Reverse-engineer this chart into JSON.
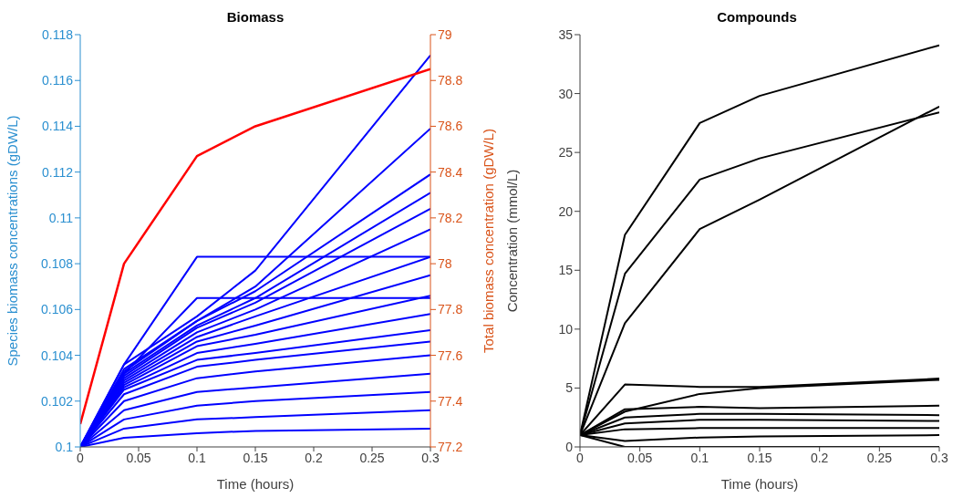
{
  "chart_data": [
    {
      "type": "line",
      "title": "Biomass",
      "xlabel": "Time (hours)",
      "ylabel": "Species biomass concentrations (gDW/L)",
      "y2label": "Total biomass concentration (gDW/L)",
      "x": [
        0,
        0.0375,
        0.1,
        0.15,
        0.3
      ],
      "xlim": [
        0,
        0.3
      ],
      "xticks": [
        0,
        0.05,
        0.1,
        0.15,
        0.2,
        0.25,
        0.3
      ],
      "ylim": [
        0.1,
        0.118
      ],
      "yticks": [
        0.1,
        0.102,
        0.104,
        0.106,
        0.108,
        0.11,
        0.112,
        0.114,
        0.116,
        0.118
      ],
      "y2lim": [
        77.2,
        79
      ],
      "y2ticks": [
        77.2,
        77.4,
        77.6,
        77.8,
        78,
        78.2,
        78.4,
        78.6,
        78.8,
        79
      ],
      "marker": "none",
      "line_style": "solid",
      "series": [
        {
          "color": "#0000ff",
          "values": [
            0.1,
            0.1036,
            0.1057,
            0.1077,
            0.1171
          ]
        },
        {
          "color": "#0000ff",
          "values": [
            0.1,
            0.1034,
            0.1055,
            0.107,
            0.1139
          ]
        },
        {
          "color": "#0000ff",
          "values": [
            0.1,
            0.1036,
            0.1083,
            0.1083,
            0.1083
          ]
        },
        {
          "color": "#0000ff",
          "values": [
            0.1,
            0.1032,
            0.1065,
            0.1065,
            0.1065
          ]
        },
        {
          "color": "#0000ff",
          "values": [
            0.1,
            0.1033,
            0.1055,
            0.1068,
            0.1119
          ]
        },
        {
          "color": "#0000ff",
          "values": [
            0.1,
            0.1032,
            0.1053,
            0.1065,
            0.1111
          ]
        },
        {
          "color": "#0000ff",
          "values": [
            0.1,
            0.1031,
            0.1052,
            0.1063,
            0.1104
          ]
        },
        {
          "color": "#0000ff",
          "values": [
            0.1,
            0.103,
            0.105,
            0.106,
            0.1095
          ]
        },
        {
          "color": "#0000ff",
          "values": [
            0.1,
            0.1029,
            0.1048,
            0.1057,
            0.1083
          ]
        },
        {
          "color": "#0000ff",
          "values": [
            0.1,
            0.1028,
            0.1046,
            0.1053,
            0.1075
          ]
        },
        {
          "color": "#0000ff",
          "values": [
            0.1,
            0.1027,
            0.1044,
            0.1049,
            0.1066
          ]
        },
        {
          "color": "#0000ff",
          "values": [
            0.1,
            0.1026,
            0.1041,
            0.1045,
            0.1058
          ]
        },
        {
          "color": "#0000ff",
          "values": [
            0.1,
            0.1025,
            0.1038,
            0.1041,
            0.1051
          ]
        },
        {
          "color": "#0000ff",
          "values": [
            0.1,
            0.1023,
            0.1035,
            0.1038,
            0.1046
          ]
        },
        {
          "color": "#0000ff",
          "values": [
            0.1,
            0.102,
            0.103,
            0.1033,
            0.104
          ]
        },
        {
          "color": "#0000ff",
          "values": [
            0.1,
            0.1016,
            0.1024,
            0.1026,
            0.1032
          ]
        },
        {
          "color": "#0000ff",
          "values": [
            0.1,
            0.1012,
            0.1018,
            0.102,
            0.1024
          ]
        },
        {
          "color": "#0000ff",
          "values": [
            0.1,
            0.1008,
            0.1012,
            0.1013,
            0.1016
          ]
        },
        {
          "color": "#0000ff",
          "values": [
            0.1,
            0.1004,
            0.1006,
            0.1007,
            0.1008
          ]
        },
        {
          "color": "#ff0000",
          "axis": "y2",
          "values": [
            77.3,
            78.0,
            78.47,
            78.6,
            78.85
          ]
        }
      ]
    },
    {
      "type": "line",
      "title": "Compounds",
      "xlabel": "Time (hours)",
      "ylabel": "Concentration (mmol/L)",
      "x": [
        0,
        0.0375,
        0.1,
        0.15,
        0.3
      ],
      "xlim": [
        0,
        0.3
      ],
      "xticks": [
        0,
        0.05,
        0.1,
        0.15,
        0.2,
        0.25,
        0.3
      ],
      "ylim": [
        0,
        35
      ],
      "yticks": [
        0,
        5,
        10,
        15,
        20,
        25,
        30,
        35
      ],
      "marker": "none",
      "line_style": "solid",
      "series": [
        {
          "color": "#000000",
          "values": [
            1,
            18,
            27.5,
            29.8,
            34.1
          ]
        },
        {
          "color": "#000000",
          "values": [
            1,
            14.7,
            22.7,
            24.5,
            28.4
          ]
        },
        {
          "color": "#000000",
          "values": [
            1,
            10.5,
            18.5,
            21,
            28.9
          ]
        },
        {
          "color": "#000000",
          "values": [
            1,
            5.3,
            5.1,
            5.1,
            5.8
          ]
        },
        {
          "color": "#000000",
          "values": [
            1,
            3,
            4.5,
            5,
            5.7
          ]
        },
        {
          "color": "#000000",
          "values": [
            1,
            3.2,
            3.4,
            3.3,
            3.5
          ]
        },
        {
          "color": "#000000",
          "values": [
            1,
            2.5,
            2.8,
            2.8,
            2.7
          ]
        },
        {
          "color": "#000000",
          "values": [
            1,
            2,
            2.3,
            2.3,
            2.2
          ]
        },
        {
          "color": "#000000",
          "values": [
            1,
            1.5,
            1.6,
            1.6,
            1.6
          ]
        },
        {
          "color": "#000000",
          "values": [
            1,
            0.5,
            0.8,
            0.9,
            1
          ]
        },
        {
          "color": "#000000",
          "values": [
            1,
            0,
            0,
            0,
            0
          ]
        }
      ]
    }
  ]
}
